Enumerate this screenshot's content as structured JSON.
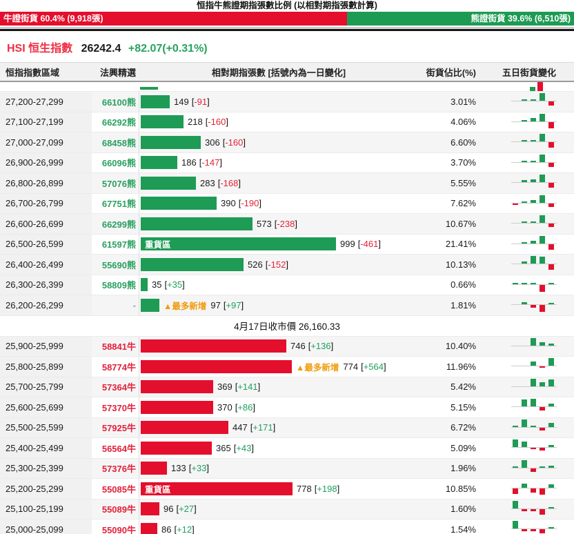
{
  "title": "恒指牛熊證期指張數比例 (以相對期指張數計算)",
  "ratio_bar": {
    "bull_label": "牛證街貨 60.4% (9,918張)",
    "bull_pct": 60.4,
    "bear_label": "熊證街貨 39.6% (6,510張)",
    "bear_pct": 39.6
  },
  "hsi": {
    "symbol_name": "HSI 恒生指數",
    "price": "26242.4",
    "change": "+82.07(+0.31%)"
  },
  "table_headers": {
    "range": "恒指指數區域",
    "pick": "法興精選",
    "bars": "相對期指張數 [括號內為一日變化]",
    "pct": "街貨佔比(%)",
    "spark": "五日街貨變化"
  },
  "labels": {
    "heavy_zone": "重貨區",
    "most_new": "▲最多新增"
  },
  "divider": "4月17日收市價 26,160.33",
  "colors": {
    "bull_red": "#e40f2c",
    "bear_green": "#1e9b55",
    "most_new_orange": "#f09c0c",
    "pos_text": "#1fa05c",
    "neg_text": "#e22333"
  },
  "chart_data": {
    "type": "bar",
    "orientation": "horizontal",
    "title": "相對期指張數 [括號內為一日變化]",
    "max_value": 999,
    "close_note": "4月17日收市價 26,160.33",
    "bear_series": {
      "name": "熊證",
      "color": "#1e9b55",
      "rows": [
        {
          "range": "27,200-27,299",
          "code": "66100熊",
          "value": 149,
          "change": "-91",
          "pct": "3.01%",
          "heavy": false,
          "most_new": false,
          "spark": [
            0,
            0.12,
            0.2,
            1,
            -0.6
          ]
        },
        {
          "range": "27,100-27,199",
          "code": "66292熊",
          "value": 218,
          "change": "-160",
          "pct": "4.06%",
          "heavy": false,
          "most_new": false,
          "spark": [
            0,
            0.1,
            0.45,
            1,
            -0.85
          ]
        },
        {
          "range": "27,000-27,099",
          "code": "68458熊",
          "value": 306,
          "change": "-160",
          "pct": "6.60%",
          "heavy": false,
          "most_new": false,
          "spark": [
            0,
            0.1,
            0.2,
            1,
            -0.8
          ]
        },
        {
          "range": "26,900-26,999",
          "code": "66096熊",
          "value": 186,
          "change": "-147",
          "pct": "3.70%",
          "heavy": false,
          "most_new": false,
          "spark": [
            0,
            0.1,
            0.15,
            1,
            -0.55
          ]
        },
        {
          "range": "26,800-26,899",
          "code": "57076熊",
          "value": 283,
          "change": "-168",
          "pct": "5.55%",
          "heavy": false,
          "most_new": false,
          "spark": [
            0,
            0.3,
            0.35,
            1,
            -0.7
          ]
        },
        {
          "range": "26,700-26,799",
          "code": "67751熊",
          "value": 390,
          "change": "-190",
          "pct": "7.62%",
          "heavy": false,
          "most_new": false,
          "spark": [
            -0.12,
            0.15,
            0.4,
            1,
            -0.5
          ]
        },
        {
          "range": "26,600-26,699",
          "code": "66299熊",
          "value": 573,
          "change": "-238",
          "pct": "10.67%",
          "heavy": false,
          "most_new": false,
          "spark": [
            0,
            0.15,
            0.2,
            1,
            -0.5
          ]
        },
        {
          "range": "26,500-26,599",
          "code": "61597熊",
          "value": 999,
          "change": "-461",
          "pct": "21.41%",
          "heavy": true,
          "most_new": false,
          "spark": [
            0,
            0.1,
            0.35,
            1,
            -0.75
          ]
        },
        {
          "range": "26,400-26,499",
          "code": "55690熊",
          "value": 526,
          "change": "-152",
          "pct": "10.13%",
          "heavy": false,
          "most_new": false,
          "spark": [
            0,
            0.25,
            1,
            0.95,
            -0.8
          ]
        },
        {
          "range": "26,300-26,399",
          "code": "58809熊",
          "value": 35,
          "change": "+35",
          "pct": "0.66%",
          "heavy": false,
          "most_new": false,
          "spark": [
            0.08,
            0.1,
            0.08,
            -1,
            0.12
          ]
        },
        {
          "range": "26,200-26,299",
          "code": "-",
          "value": 97,
          "change": "+97",
          "pct": "1.81%",
          "heavy": false,
          "most_new": true,
          "spark": [
            0,
            0.25,
            -0.35,
            -1,
            0.2
          ]
        }
      ]
    },
    "bull_series": {
      "name": "牛證",
      "color": "#e40f2c",
      "rows": [
        {
          "range": "25,900-25,999",
          "code": "58841牛",
          "value": 746,
          "change": "+136",
          "pct": "10.40%",
          "heavy": false,
          "most_new": false,
          "spark": [
            0,
            0,
            1,
            0.45,
            0.3
          ]
        },
        {
          "range": "25,800-25,899",
          "code": "58774牛",
          "value": 774,
          "change": "+564",
          "pct": "11.96%",
          "heavy": false,
          "most_new": true,
          "spark": [
            0,
            0,
            0.5,
            -0.2,
            1
          ]
        },
        {
          "range": "25,700-25,799",
          "code": "57364牛",
          "value": 369,
          "change": "+141",
          "pct": "5.42%",
          "heavy": false,
          "most_new": false,
          "spark": [
            0,
            0,
            1,
            0.5,
            0.95
          ]
        },
        {
          "range": "25,600-25,699",
          "code": "57370牛",
          "value": 370,
          "change": "+86",
          "pct": "5.15%",
          "heavy": false,
          "most_new": false,
          "spark": [
            0,
            0.9,
            1,
            -0.5,
            0.35
          ]
        },
        {
          "range": "25,500-25,599",
          "code": "57925牛",
          "value": 447,
          "change": "+171",
          "pct": "6.72%",
          "heavy": false,
          "most_new": false,
          "spark": [
            0.15,
            1,
            0.1,
            -0.4,
            0.5
          ]
        },
        {
          "range": "25,400-25,499",
          "code": "56564牛",
          "value": 365,
          "change": "+43",
          "pct": "5.09%",
          "heavy": false,
          "most_new": false,
          "spark": [
            1,
            0.7,
            -0.2,
            -0.35,
            0.25
          ]
        },
        {
          "range": "25,300-25,399",
          "code": "57376牛",
          "value": 133,
          "change": "+33",
          "pct": "1.96%",
          "heavy": false,
          "most_new": false,
          "spark": [
            0.15,
            1,
            -0.45,
            0.2,
            0.3
          ]
        },
        {
          "range": "25,200-25,299",
          "code": "55085牛",
          "value": 778,
          "change": "+198",
          "pct": "10.85%",
          "heavy": true,
          "most_new": false,
          "spark": [
            -0.8,
            0.5,
            -0.6,
            -0.9,
            0.45
          ]
        },
        {
          "range": "25,100-25,199",
          "code": "55089牛",
          "value": 96,
          "change": "+27",
          "pct": "1.60%",
          "heavy": false,
          "most_new": false,
          "spark": [
            1,
            -0.3,
            -0.3,
            -0.8,
            0.2
          ]
        },
        {
          "range": "25,000-25,099",
          "code": "55090牛",
          "value": 86,
          "change": "+12",
          "pct": "1.54%",
          "heavy": false,
          "most_new": false,
          "spark": [
            1,
            -0.25,
            -0.25,
            -0.6,
            0.15
          ]
        }
      ]
    }
  }
}
